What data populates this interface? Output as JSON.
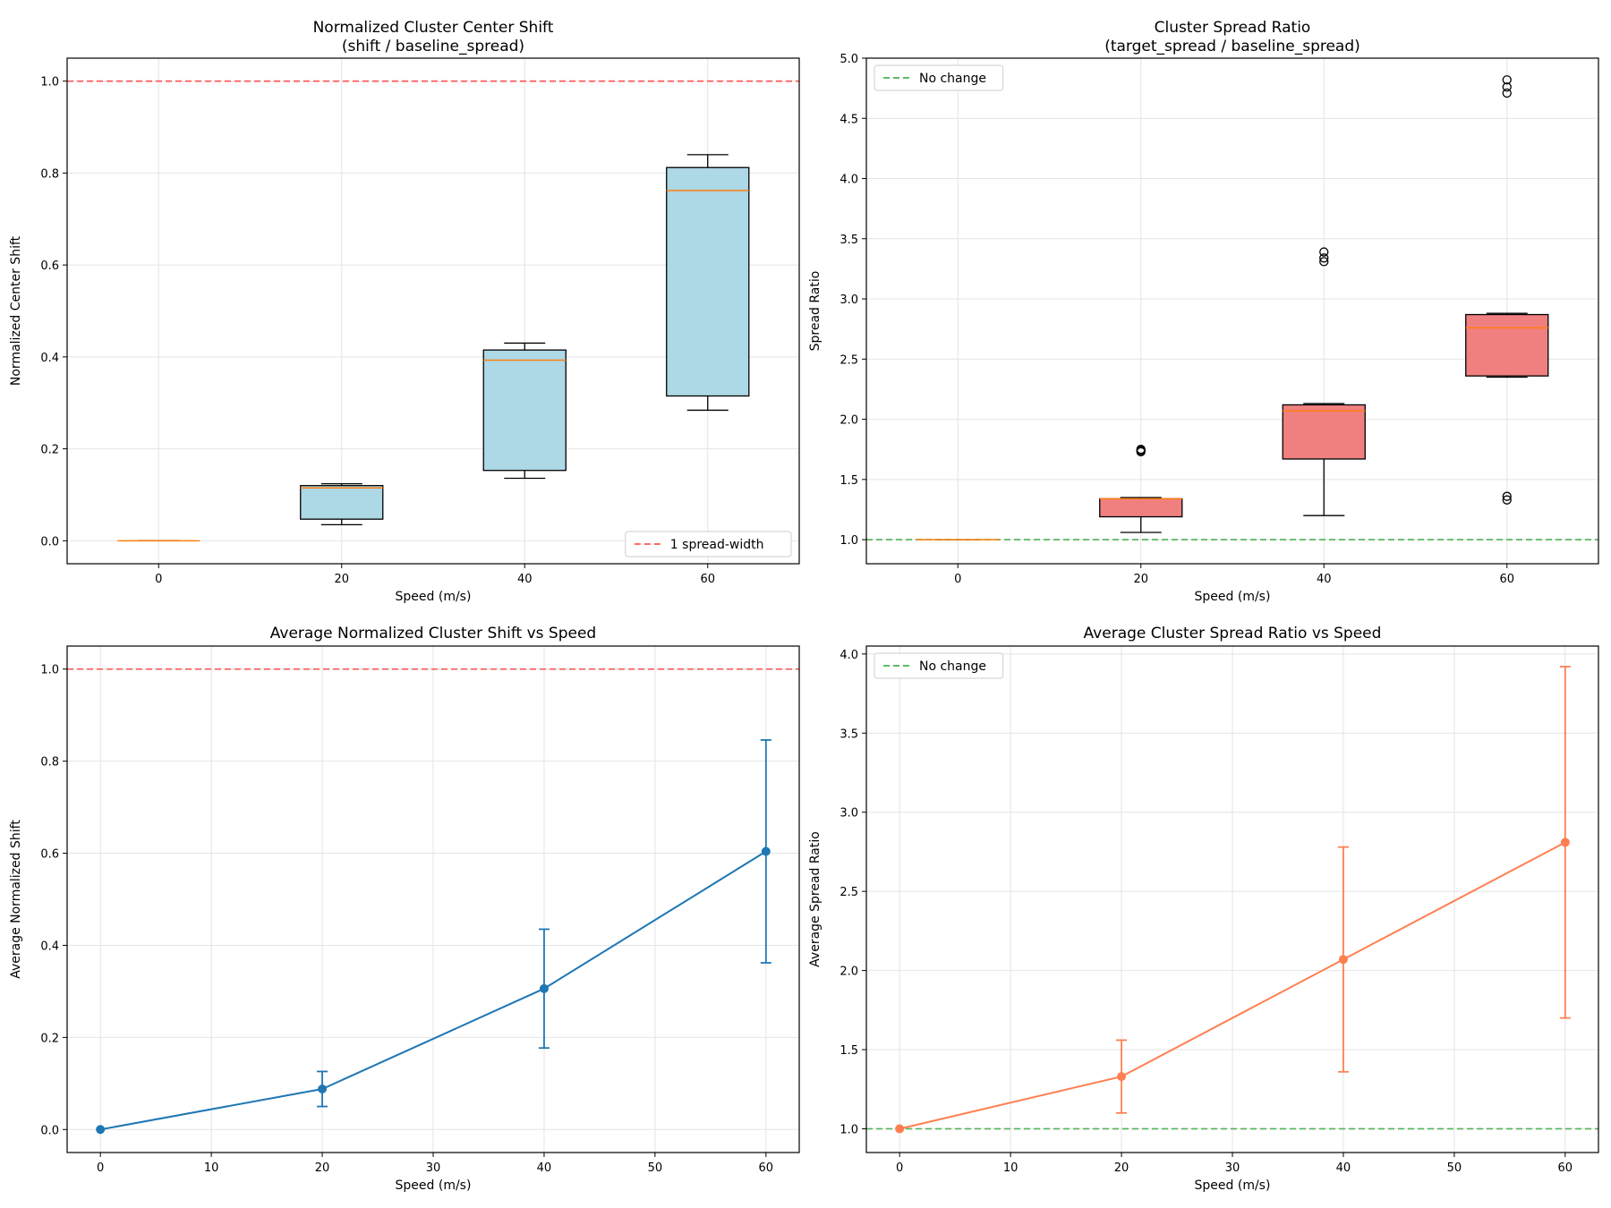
{
  "chart_data": [
    {
      "type": "box",
      "title": "Normalized Cluster Center Shift\n(shift / baseline_spread)",
      "xlabel": "Speed (m/s)",
      "ylabel": "Normalized Center Shift",
      "categories": [
        "0",
        "20",
        "40",
        "60"
      ],
      "xlim": [
        -10,
        70
      ],
      "ylim": [
        -0.05,
        1.05
      ],
      "yticks": [
        "0.0",
        "0.2",
        "0.4",
        "0.6",
        "0.8",
        "1.0"
      ],
      "grid": true,
      "box_color": "#add8e6",
      "median_color": "#ff7f0e",
      "boxes": [
        {
          "x": 0,
          "whislo": 0.0,
          "q1": 0.0,
          "med": 0.0,
          "q3": 0.0,
          "whishi": 0.0,
          "fliers": []
        },
        {
          "x": 20,
          "whislo": 0.035,
          "q1": 0.047,
          "med": 0.115,
          "q3": 0.12,
          "whishi": 0.124,
          "fliers": []
        },
        {
          "x": 40,
          "whislo": 0.136,
          "q1": 0.153,
          "med": 0.393,
          "q3": 0.415,
          "whishi": 0.43,
          "fliers": []
        },
        {
          "x": 60,
          "whislo": 0.284,
          "q1": 0.315,
          "med": 0.762,
          "q3": 0.812,
          "whishi": 0.84,
          "fliers": []
        }
      ],
      "reference_line": {
        "y": 1.0,
        "color": "#ff5555",
        "label": "1 spread-width"
      },
      "legend": {
        "loc": "lower-right",
        "entries": [
          "1 spread-width"
        ]
      }
    },
    {
      "type": "box",
      "title": "Cluster Spread Ratio\n(target_spread / baseline_spread)",
      "xlabel": "Speed (m/s)",
      "ylabel": "Spread Ratio",
      "categories": [
        "0",
        "20",
        "40",
        "60"
      ],
      "xlim": [
        -10,
        70
      ],
      "ylim": [
        0.8,
        5.0
      ],
      "yticks": [
        "1.0",
        "1.5",
        "2.0",
        "2.5",
        "3.0",
        "3.5",
        "4.0",
        "4.5",
        "5.0"
      ],
      "grid": true,
      "box_color": "#f08080",
      "median_color": "#ff7f0e",
      "boxes": [
        {
          "x": 0,
          "whislo": 1.0,
          "q1": 1.0,
          "med": 1.0,
          "q3": 1.0,
          "whishi": 1.0,
          "fliers": []
        },
        {
          "x": 20,
          "whislo": 1.06,
          "q1": 1.19,
          "med": 1.34,
          "q3": 1.34,
          "whishi": 1.35,
          "fliers": [
            1.73,
            1.74,
            1.75
          ]
        },
        {
          "x": 40,
          "whislo": 1.2,
          "q1": 1.67,
          "med": 2.07,
          "q3": 2.12,
          "whishi": 2.13,
          "fliers": [
            3.31,
            3.34,
            3.39
          ]
        },
        {
          "x": 60,
          "whislo": 2.35,
          "q1": 2.36,
          "med": 2.76,
          "q3": 2.87,
          "whishi": 2.88,
          "fliers": [
            1.33,
            1.36,
            4.71,
            4.76,
            4.82
          ]
        }
      ],
      "reference_line": {
        "y": 1.0,
        "color": "#4caf50",
        "label": "No change"
      },
      "legend": {
        "loc": "top-left",
        "entries": [
          "No change"
        ]
      }
    },
    {
      "type": "line",
      "title": "Average Normalized Cluster Shift vs Speed",
      "xlabel": "Speed (m/s)",
      "ylabel": "Average Normalized Shift",
      "xlim": [
        -3,
        63
      ],
      "ylim": [
        -0.05,
        1.05
      ],
      "xticks": [
        "0",
        "10",
        "20",
        "30",
        "40",
        "50",
        "60"
      ],
      "yticks": [
        "0.0",
        "0.2",
        "0.4",
        "0.6",
        "0.8",
        "1.0"
      ],
      "grid": true,
      "series": [
        {
          "name": "Average Normalized Shift",
          "color": "#1f77b4",
          "x": [
            0,
            20,
            40,
            60
          ],
          "y": [
            0.0,
            0.088,
            0.306,
            0.604
          ],
          "err": [
            0.0,
            0.038,
            0.129,
            0.242
          ]
        }
      ],
      "reference_line": {
        "y": 1.0,
        "color": "#ff5555",
        "label": ""
      }
    },
    {
      "type": "line",
      "title": "Average Cluster Spread Ratio vs Speed",
      "xlabel": "Speed (m/s)",
      "ylabel": "Average Spread Ratio",
      "xlim": [
        -3,
        63
      ],
      "ylim": [
        0.85,
        4.05
      ],
      "xticks": [
        "0",
        "10",
        "20",
        "30",
        "40",
        "50",
        "60"
      ],
      "yticks": [
        "1.0",
        "1.5",
        "2.0",
        "2.5",
        "3.0",
        "3.5",
        "4.0"
      ],
      "grid": true,
      "series": [
        {
          "name": "Average Spread Ratio",
          "color": "#ff7f50",
          "x": [
            0,
            20,
            40,
            60
          ],
          "y": [
            1.0,
            1.33,
            2.07,
            2.81
          ],
          "err": [
            0.0,
            0.23,
            0.71,
            1.11
          ]
        }
      ],
      "reference_line": {
        "y": 1.0,
        "color": "#4caf50",
        "label": "No change"
      },
      "legend": {
        "loc": "top-left",
        "entries": [
          "No change"
        ]
      }
    }
  ]
}
